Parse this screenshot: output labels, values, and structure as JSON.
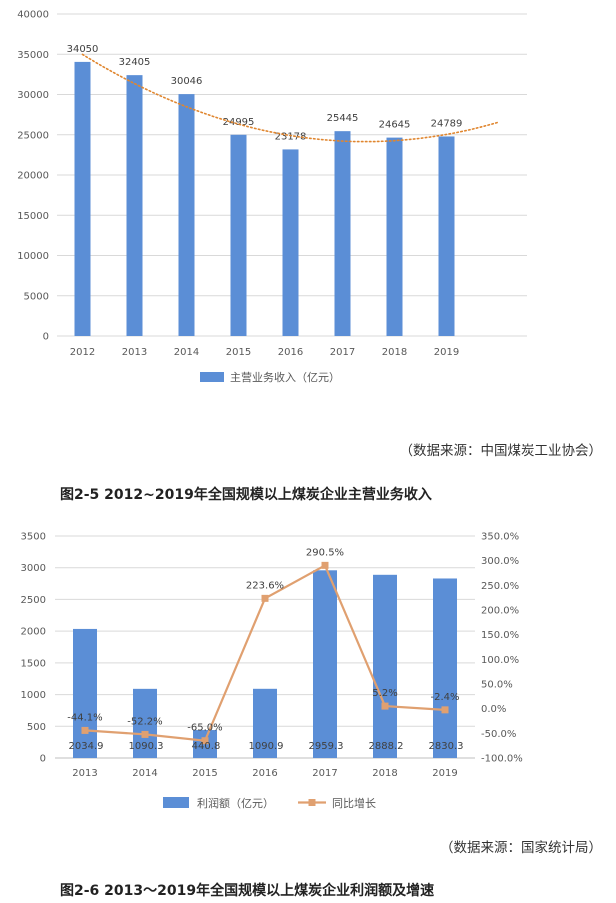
{
  "chart_data": [
    {
      "type": "bar",
      "categories": [
        "2012",
        "2013",
        "2014",
        "2015",
        "2016",
        "2017",
        "2018",
        "2019"
      ],
      "series": [
        {
          "name": "主营业务收入（亿元）",
          "values": [
            34050,
            32405,
            30046,
            24995,
            23178,
            25445,
            24645,
            24789
          ]
        }
      ],
      "data_labels": [
        "34050",
        "32405",
        "30046",
        "24995",
        "23178",
        "25445",
        "24645",
        "24789"
      ],
      "trendline": {
        "type": "polynomial",
        "color": "#E0862F",
        "style": "dotted"
      },
      "ylim": [
        0,
        40000
      ],
      "yticks": [
        "0",
        "5000",
        "10000",
        "15000",
        "20000",
        "25000",
        "30000",
        "35000",
        "40000"
      ],
      "grid": true,
      "legend": "bottom",
      "bar_color": "#5B8ED6"
    },
    {
      "type": "bar",
      "categories": [
        "2013",
        "2014",
        "2015",
        "2016",
        "2017",
        "2018",
        "2019"
      ],
      "series": [
        {
          "name": "利润额（亿元）",
          "values": [
            2034.9,
            1090.3,
            440.8,
            1090.9,
            2959.3,
            2888.2,
            2830.3
          ],
          "axis": "left"
        },
        {
          "name": "同比增长",
          "values": [
            -44.1,
            -52.2,
            -65.0,
            223.6,
            290.5,
            5.2,
            -2.4
          ],
          "axis": "right",
          "type": "line"
        }
      ],
      "bar_labels": [
        "2034.9",
        "1090.3",
        "440.8",
        "1090.9",
        "2959.3",
        "2888.2",
        "2830.3"
      ],
      "line_labels": [
        "-44.1%",
        "-52.2%",
        "-65.0%",
        "223.6%",
        "290.5%",
        "5.2%",
        "-2.4%"
      ],
      "ylim": [
        0,
        3500
      ],
      "yticks": [
        "0",
        "500",
        "1000",
        "1500",
        "2000",
        "2500",
        "3000",
        "3500"
      ],
      "y2lim": [
        -100,
        350
      ],
      "y2ticks": [
        "-100.0%",
        "-50.0%",
        "0.0%",
        "50.0%",
        "100.0%",
        "150.0%",
        "200.0%",
        "250.0%",
        "300.0%",
        "350.0%"
      ],
      "grid": true,
      "legend": "bottom",
      "bar_color": "#5B8ED6",
      "line_color": "#E0A070"
    }
  ],
  "figure1": {
    "source": "（数据来源：中国煤炭工业协会）",
    "caption": "图2-5 2012~2019年全国规模以上煤炭企业主营业务收入"
  },
  "figure2": {
    "source": "（数据来源：国家统计局）",
    "caption": "图2-6 2013～2019年全国规模以上煤炭企业利润额及增速"
  }
}
